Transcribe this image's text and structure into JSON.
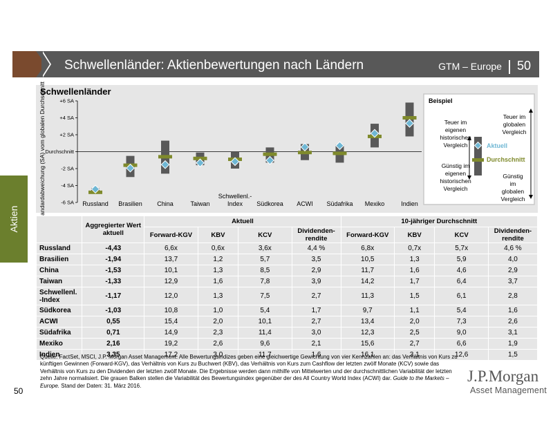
{
  "header": {
    "title": "Schwellenländer: Aktienbewertungen nach Ländern",
    "series": "GTM – Europe",
    "page": "50"
  },
  "side_tab": {
    "label": "Aktien"
  },
  "chart_data": {
    "type": "range-bar",
    "title": "Schwellenländer",
    "ylabel": "Standardabweichung (SA) vom globalen Durchschnitt",
    "ylim": [
      -6,
      6
    ],
    "yticks": [
      "+6 SA",
      "+4 SA",
      "+2 SA",
      "Durchschnitt",
      "-2 SA",
      "-4 SA",
      "-6 SA"
    ],
    "categories": [
      "Russland",
      "Brasilien",
      "China",
      "Taiwan",
      "Schwellenl.-Index",
      "Südkorea",
      "ACWI",
      "Südafrika",
      "Mexiko",
      "Indien"
    ],
    "category_labels": [
      [
        "Russland"
      ],
      [
        "Brasilien"
      ],
      [
        "China"
      ],
      [
        "Taiwan"
      ],
      [
        "Schwellenl.-",
        "Index"
      ],
      [
        "Südkorea"
      ],
      [
        "ACWI"
      ],
      [
        "Südafrika"
      ],
      [
        "Mexiko"
      ],
      [
        "Indien"
      ]
    ],
    "low": [
      -4.9,
      -3.0,
      -2.6,
      -1.6,
      -2.0,
      -1.3,
      -1.0,
      -1.3,
      0.5,
      1.8
    ],
    "high": [
      -4.3,
      -0.5,
      1.3,
      -0.1,
      0.0,
      0.5,
      0.9,
      0.8,
      3.3,
      5.8
    ],
    "average": [
      -4.8,
      -1.6,
      -0.6,
      -0.8,
      -0.9,
      -0.3,
      -0.1,
      -0.2,
      1.8,
      4.0
    ],
    "current": [
      -4.43,
      -1.94,
      -1.53,
      -1.33,
      -1.17,
      -1.03,
      0.55,
      0.71,
      2.16,
      3.35
    ],
    "colors": {
      "bar": "#595959",
      "average": "#7f8a2c",
      "current": "#6fb7d4",
      "panel": "#e6e6e6"
    },
    "legend": {
      "title": "Beispiel",
      "expensive_own": "Teuer im eigenen historischen Vergleich",
      "expensive_global": "Teuer im globalen Vergleich",
      "cheap_own": "Günstig im eigenen historischen Vergleich",
      "cheap_global": "Günstig im globalen Vergleich",
      "current": "Aktuell",
      "average": "Durchschnitt"
    }
  },
  "table": {
    "col_agg": "Aggregierter Wert aktuell",
    "group_current": "Aktuell",
    "group_10y": "10-jähriger Durchschnitt",
    "subcols": [
      "Forward-KGV",
      "KBV",
      "KCV",
      "Dividenden-rendite",
      "Forward-KGV",
      "KBV",
      "KCV",
      "Dividenden-rendite"
    ],
    "rows": [
      [
        "Russland",
        "-4,43",
        "6,6x",
        "0,6x",
        "3,6x",
        "4,4 %",
        "6,8x",
        "0,7x",
        "5,7x",
        "4,6 %"
      ],
      [
        "Brasilien",
        "-1,94",
        "13,7",
        "1,2",
        "5,7",
        "3,5",
        "10,5",
        "1,3",
        "5,9",
        "4,0"
      ],
      [
        "China",
        "-1,53",
        "10,1",
        "1,3",
        "8,5",
        "2,9",
        "11,7",
        "1,6",
        "4,6",
        "2,9"
      ],
      [
        "Taiwan",
        "-1,33",
        "12,9",
        "1,6",
        "7,8",
        "3,9",
        "14,2",
        "1,7",
        "6,4",
        "3,7"
      ],
      [
        "Schwellenl. -Index",
        "-1,17",
        "12,0",
        "1,3",
        "7,5",
        "2,7",
        "11,3",
        "1,5",
        "6,1",
        "2,8"
      ],
      [
        "Südkorea",
        "-1,03",
        "10,8",
        "1,0",
        "5,4",
        "1,7",
        "9,7",
        "1,1",
        "5,4",
        "1,6"
      ],
      [
        "ACWI",
        "0,55",
        "15,4",
        "2,0",
        "10,1",
        "2,7",
        "13,4",
        "2,0",
        "7,3",
        "2,6"
      ],
      [
        "Südafrika",
        "0,71",
        "14,9",
        "2,3",
        "11,4",
        "3,0",
        "12,3",
        "2,5",
        "9,0",
        "3,1"
      ],
      [
        "Mexiko",
        "2,16",
        "19,2",
        "2,6",
        "9,6",
        "2,1",
        "15,6",
        "2,7",
        "6,6",
        "1,9"
      ],
      [
        "Indien",
        "3,35",
        "17,2",
        "3,0",
        "11,7",
        "1,6",
        "16,1",
        "3,1",
        "12,6",
        "1,5"
      ]
    ]
  },
  "footnote": {
    "text": "Quelle: FactSet, MSCI, J.P. Morgan Asset Management. Alle Bewertungsindizes geben eine gleichwertige Gewichtung von vier Kennzahlen an: das Verhältnis von Kurs zu künftigen Gewinnen (Forward-KGV), das Verhältnis von Kurs zu Buchwert (KBV), das Verhältnis von Kurs zum Cashflow der letzten zwölf Monate (KCV) sowie das Verhältnis von Kurs zu den Dividenden der letzten zwölf Monate. Die Ergebnisse werden dann mithilfe von Mittelwerten und der durchschnittlichen Variabilität der letzten zehn Jahre normalisiert. Die grauen Balken stellen die Variabilität des Bewertungsindex gegenüber der des All Country World Index (ACWI) dar.",
    "guide": "Guide to the Markets – Europe.",
    "date": "Stand der Daten: 31. März 2016."
  },
  "page_number": "50",
  "logo": {
    "line1": "J.P.Morgan",
    "line2": "Asset Management"
  }
}
